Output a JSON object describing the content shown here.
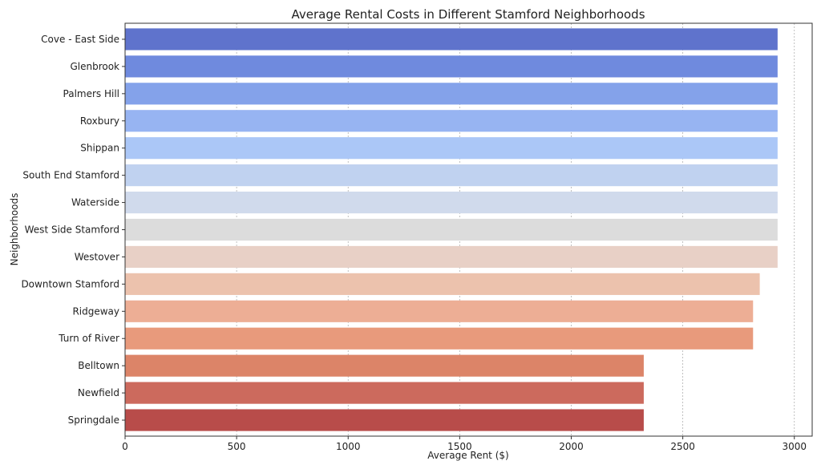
{
  "chart_data": {
    "type": "bar",
    "orientation": "horizontal",
    "title": "Average Rental Costs in Different Stamford Neighborhoods",
    "xlabel": "Average Rent ($)",
    "ylabel": "Neighborhoods",
    "xlim": [
      0,
      3080
    ],
    "xticks": [
      0,
      500,
      1000,
      1500,
      2000,
      2500,
      3000
    ],
    "grid": "x, dashed",
    "categories": [
      "Cove - East Side",
      "Glenbrook",
      "Palmers Hill",
      "Roxbury",
      "Shippan",
      "South End Stamford",
      "Waterside",
      "West Side Stamford",
      "Westover",
      "Downtown Stamford",
      "Ridgeway",
      "Turn of River",
      "Belltown",
      "Newfield",
      "Springdale"
    ],
    "values": [
      2925,
      2925,
      2925,
      2925,
      2925,
      2925,
      2925,
      2925,
      2925,
      2845,
      2815,
      2815,
      2325,
      2325,
      2325
    ],
    "colors": [
      "#5f73cc",
      "#6f8ade",
      "#84a2ea",
      "#97b4f2",
      "#abc7f7",
      "#c0d2f0",
      "#d0daec",
      "#dcdcdc",
      "#e8d0c6",
      "#ecc2ad",
      "#edae95",
      "#e89a7c",
      "#dc8468",
      "#cc6a5d",
      "#b84c4a"
    ]
  }
}
